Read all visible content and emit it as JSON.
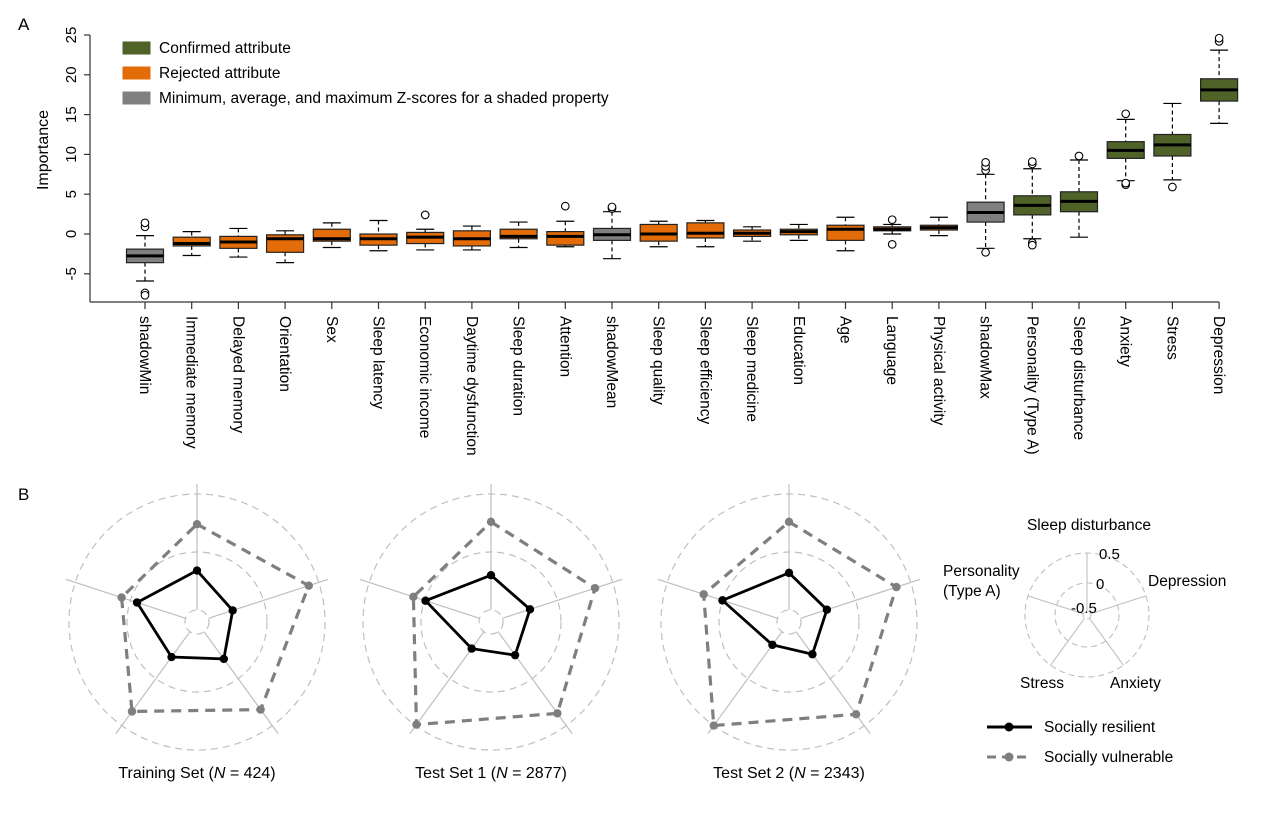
{
  "panel_labels": {
    "a": "A",
    "b": "B"
  },
  "colors": {
    "confirmed": "#4F6228",
    "rejected": "#E36C09",
    "shadow": "#808080",
    "resilient": "#000000",
    "vulnerable": "#7F7F7F",
    "grid": "#BFBFBF"
  },
  "chart_data": [
    {
      "type": "boxplot",
      "title": "",
      "xlabel": "",
      "ylabel": "Importance",
      "ylim": [
        -8.5,
        25
      ],
      "yticks": [
        -5,
        0,
        5,
        10,
        15,
        20,
        25
      ],
      "ytick_labels": [
        "-5",
        "0",
        "5",
        "10",
        "15",
        "20",
        "25"
      ],
      "legend": {
        "placement": "top-left",
        "entries": [
          {
            "label": "Confirmed attribute",
            "status": "confirmed"
          },
          {
            "label": "Rejected attribute",
            "status": "rejected"
          },
          {
            "label": "Minimum, average, and maximum Z-scores for a shaded property",
            "status": "shadow"
          }
        ]
      },
      "categories": [
        "shadowMin",
        "Immediate memory",
        "Delayed memory",
        "Orientation",
        "Sex",
        "Sleep latency",
        "Economic income",
        "Daytime dysfunction",
        "Sleep duration",
        "Attention",
        "shadowMean",
        "Sleep quality",
        "Sleep efficiency",
        "Sleep medicine",
        "Education",
        "Age",
        "Language",
        "Physical activity",
        "shadowMax",
        "Personality (Type A)",
        "Sleep disturbance",
        "Anxiety",
        "Stress",
        "Depression"
      ],
      "boxes": [
        {
          "name": "shadowMin",
          "status": "shadow",
          "whisker_low": -5.9,
          "q1": -3.6,
          "median": -2.75,
          "q3": -1.9,
          "whisker_high": -0.2,
          "outliers": [
            0.9,
            1.4,
            -7.4,
            -7.7
          ]
        },
        {
          "name": "Immediate memory",
          "status": "rejected",
          "whisker_low": -2.7,
          "q1": -1.5,
          "median": -1.2,
          "q3": -0.4,
          "whisker_high": 0.3
        },
        {
          "name": "Delayed memory",
          "status": "rejected",
          "whisker_low": -2.9,
          "q1": -1.8,
          "median": -1.0,
          "q3": -0.3,
          "whisker_high": 0.7
        },
        {
          "name": "Orientation",
          "status": "rejected",
          "whisker_low": -3.6,
          "q1": -2.3,
          "median": -0.6,
          "q3": -0.1,
          "whisker_high": 0.4
        },
        {
          "name": "Sex",
          "status": "rejected",
          "whisker_low": -1.7,
          "q1": -0.9,
          "median": -0.6,
          "q3": 0.6,
          "whisker_high": 1.4
        },
        {
          "name": "Sleep latency",
          "status": "rejected",
          "whisker_low": -2.1,
          "q1": -1.4,
          "median": -0.6,
          "q3": 0.0,
          "whisker_high": 1.7
        },
        {
          "name": "Economic income",
          "status": "rejected",
          "whisker_low": -2.0,
          "q1": -1.2,
          "median": -0.4,
          "q3": 0.2,
          "whisker_high": 0.6,
          "outliers": [
            2.4
          ]
        },
        {
          "name": "Daytime dysfunction",
          "status": "rejected",
          "whisker_low": -2.0,
          "q1": -1.5,
          "median": -0.6,
          "q3": 0.4,
          "whisker_high": 1.0
        },
        {
          "name": "Sleep duration",
          "status": "rejected",
          "whisker_low": -1.7,
          "q1": -0.6,
          "median": -0.3,
          "q3": 0.6,
          "whisker_high": 1.5
        },
        {
          "name": "Attention",
          "status": "rejected",
          "whisker_low": -1.6,
          "q1": -1.4,
          "median": -0.3,
          "q3": 0.3,
          "whisker_high": 1.6,
          "outliers": [
            3.5
          ]
        },
        {
          "name": "shadowMean",
          "status": "shadow",
          "whisker_low": -3.1,
          "q1": -0.8,
          "median": -0.1,
          "q3": 0.7,
          "whisker_high": 2.8,
          "outliers": [
            3.2,
            3.4
          ]
        },
        {
          "name": "Sleep quality",
          "status": "rejected",
          "whisker_low": -1.6,
          "q1": -0.9,
          "median": 0.0,
          "q3": 1.2,
          "whisker_high": 1.6
        },
        {
          "name": "Sleep efficiency",
          "status": "rejected",
          "whisker_low": -1.6,
          "q1": -0.5,
          "median": 0.1,
          "q3": 1.4,
          "whisker_high": 1.7
        },
        {
          "name": "Sleep medicine",
          "status": "rejected",
          "whisker_low": -0.9,
          "q1": -0.3,
          "median": 0.1,
          "q3": 0.5,
          "whisker_high": 0.9
        },
        {
          "name": "Education",
          "status": "rejected",
          "whisker_low": -0.8,
          "q1": -0.1,
          "median": 0.3,
          "q3": 0.6,
          "whisker_high": 1.2
        },
        {
          "name": "Age",
          "status": "rejected",
          "whisker_low": -2.1,
          "q1": -0.8,
          "median": 0.6,
          "q3": 1.1,
          "whisker_high": 2.1
        },
        {
          "name": "Language",
          "status": "rejected",
          "whisker_low": 0.0,
          "q1": 0.4,
          "median": 0.6,
          "q3": 0.9,
          "whisker_high": 1.2,
          "outliers": [
            1.8,
            -1.3
          ]
        },
        {
          "name": "Physical activity",
          "status": "rejected",
          "whisker_low": -0.2,
          "q1": 0.5,
          "median": 0.8,
          "q3": 1.1,
          "whisker_high": 2.1
        },
        {
          "name": "shadowMax",
          "status": "shadow",
          "whisker_low": -1.8,
          "q1": 1.5,
          "median": 2.7,
          "q3": 4.0,
          "whisker_high": 7.5,
          "outliers": [
            8.0,
            8.5,
            9.0,
            -2.3
          ]
        },
        {
          "name": "Personality (Type A)",
          "status": "confirmed",
          "whisker_low": -0.6,
          "q1": 2.4,
          "median": 3.6,
          "q3": 4.8,
          "whisker_high": 8.2,
          "outliers": [
            8.8,
            9.1,
            -1.1,
            -1.4
          ]
        },
        {
          "name": "Sleep disturbance",
          "status": "confirmed",
          "whisker_low": -0.4,
          "q1": 2.8,
          "median": 4.1,
          "q3": 5.3,
          "whisker_high": 9.3,
          "outliers": [
            9.8
          ]
        },
        {
          "name": "Anxiety",
          "status": "confirmed",
          "whisker_low": 6.7,
          "q1": 9.5,
          "median": 10.5,
          "q3": 11.6,
          "whisker_high": 14.4,
          "outliers": [
            15.1,
            6.2,
            6.4
          ]
        },
        {
          "name": "Stress",
          "status": "confirmed",
          "whisker_low": 6.8,
          "q1": 9.8,
          "median": 11.2,
          "q3": 12.5,
          "whisker_high": 16.4,
          "outliers": [
            5.9
          ]
        },
        {
          "name": "Depression",
          "status": "confirmed",
          "whisker_low": 13.9,
          "q1": 16.7,
          "median": 18.1,
          "q3": 19.5,
          "whisker_high": 23.1,
          "outliers": [
            24.2,
            24.6
          ]
        }
      ]
    },
    {
      "type": "radar",
      "axes": [
        "Sleep disturbance",
        "Depression",
        "Anxiety",
        "Stress",
        "Personality (Type A)"
      ],
      "axis_labels_display": [
        "Sleep disturbance",
        "Depression",
        "Anxiety",
        "Stress",
        "Personality|(Type A)"
      ],
      "rlim": [
        -0.5,
        0.5
      ],
      "rticks": [
        -0.5,
        0,
        0.5
      ],
      "rtick_labels": [
        "-0.5",
        "0",
        "0.5"
      ],
      "legend": {
        "placement": "right",
        "entries": [
          {
            "label": "Socially resilient",
            "style": "solid"
          },
          {
            "label": "Socially vulnerable",
            "style": "dashed"
          }
        ]
      },
      "panels": [
        {
          "title_prefix": "Training Set (",
          "title_italic": "N",
          "title_suffix": " = 424)",
          "series": [
            {
              "name": "Socially resilient",
              "values": [
                -0.16,
                -0.28,
                -0.21,
                -0.23,
                -0.06
              ]
            },
            {
              "name": "Socially vulnerable",
              "values": [
                0.24,
                0.41,
                0.33,
                0.35,
                0.08
              ]
            }
          ]
        },
        {
          "title_prefix": "Test Set 1 (",
          "title_italic": "N",
          "title_suffix": " = 2877)",
          "series": [
            {
              "name": "Socially resilient",
              "values": [
                -0.2,
                -0.25,
                -0.25,
                -0.32,
                -0.01
              ]
            },
            {
              "name": "Socially vulnerable",
              "values": [
                0.26,
                0.34,
                0.37,
                0.49,
                0.1
              ]
            }
          ]
        },
        {
          "title_prefix": "Test Set 2 (",
          "title_italic": "N",
          "title_suffix": " = 2343)",
          "series": [
            {
              "name": "Socially resilient",
              "values": [
                -0.18,
                -0.26,
                -0.26,
                -0.36,
                0.0
              ]
            },
            {
              "name": "Socially vulnerable",
              "values": [
                0.26,
                0.37,
                0.38,
                0.5,
                0.17
              ]
            }
          ]
        }
      ]
    }
  ]
}
